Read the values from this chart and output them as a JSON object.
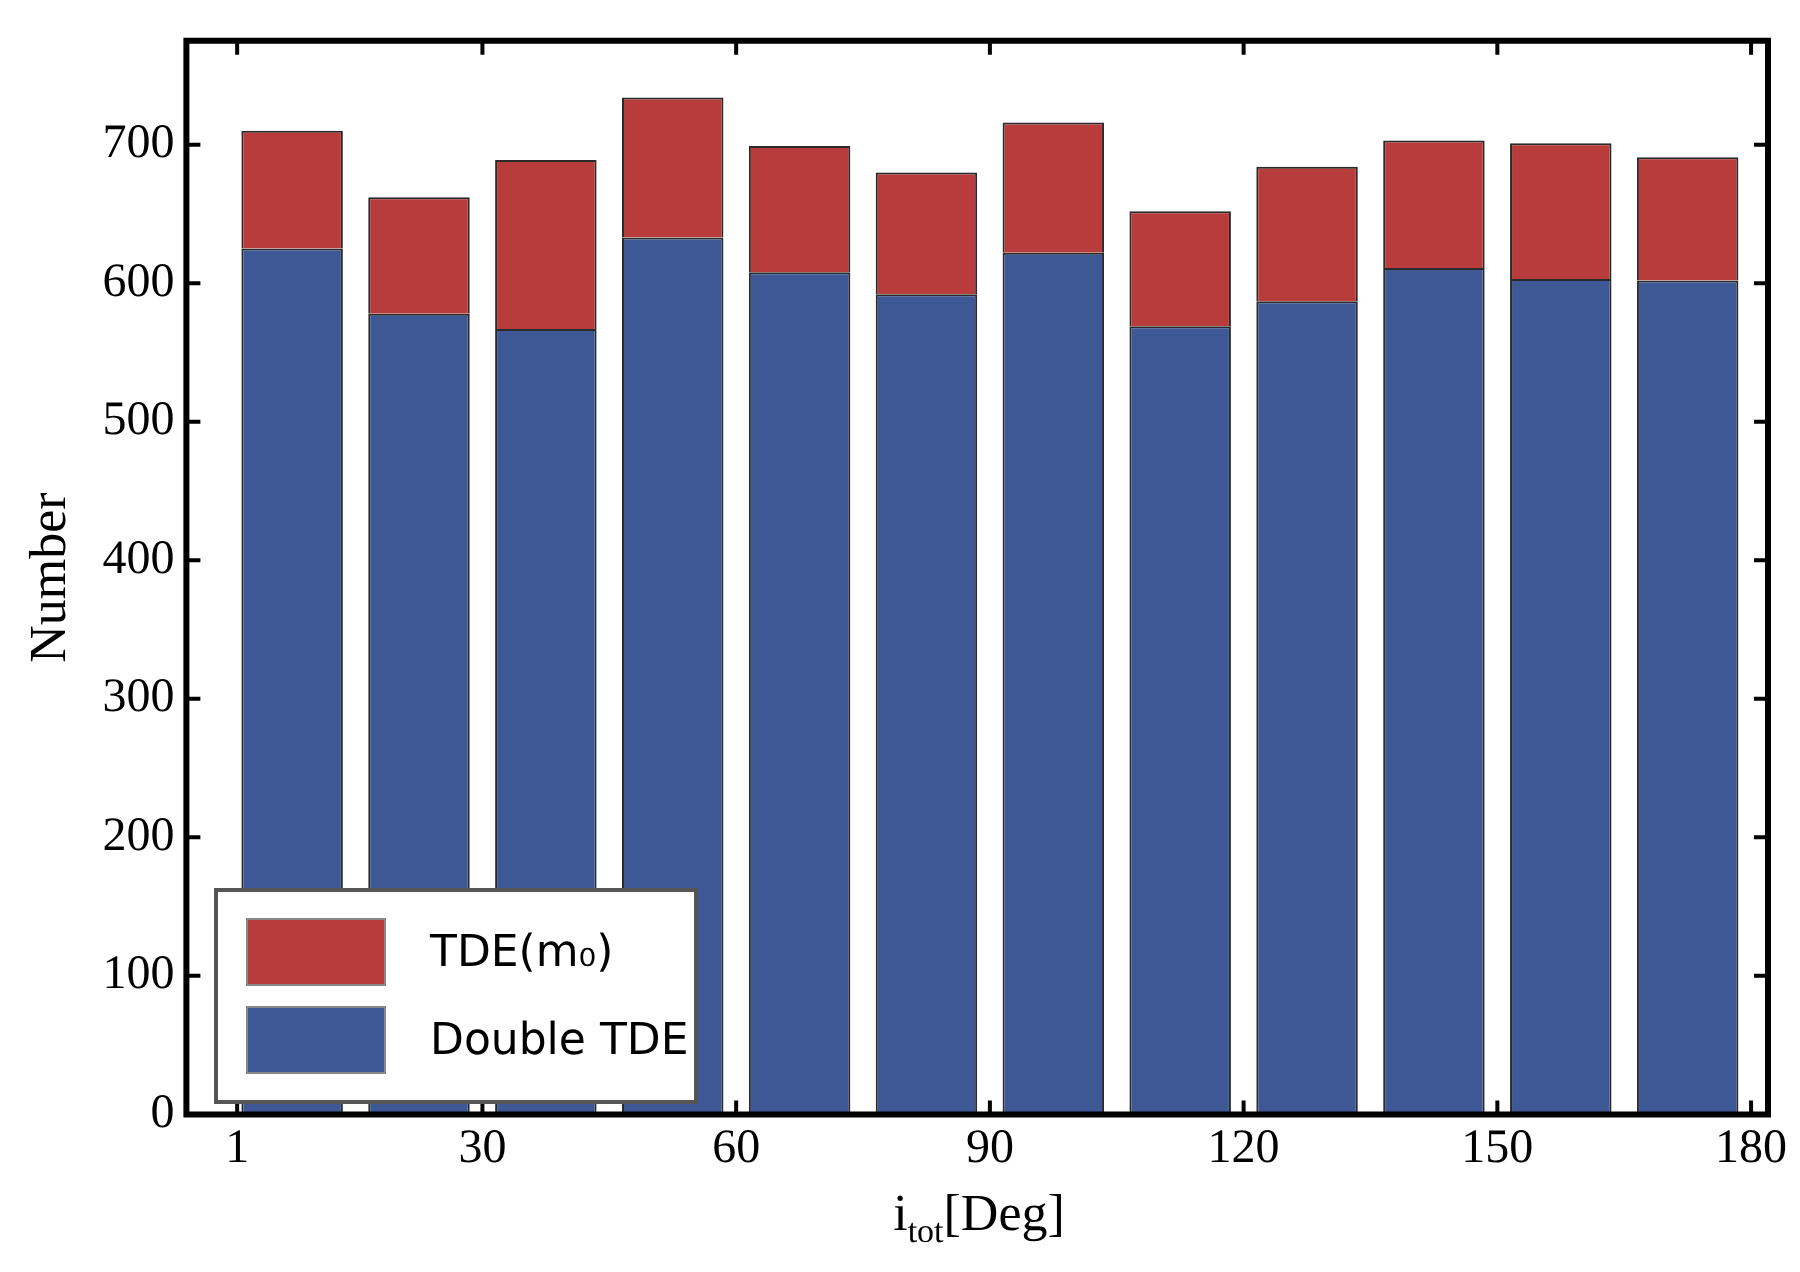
{
  "chart_data": {
    "type": "bar",
    "stacked": true,
    "xlabel": "i$_{tot}$[Deg]",
    "ylabel": "Number",
    "x": [
      7.5,
      22.5,
      37.5,
      52.5,
      67.5,
      82.5,
      97.5,
      112.5,
      127.5,
      142.5,
      157.5,
      172.5
    ],
    "xlim": [
      -5,
      182
    ],
    "xticks": [
      1,
      30,
      60,
      90,
      120,
      150,
      180
    ],
    "ylim": [
      0,
      775
    ],
    "yticks": [
      0,
      100,
      200,
      300,
      400,
      500,
      600,
      700
    ],
    "legend": "bottom left",
    "series": [
      {
        "name": "Double TDE",
        "color": "#3d5894",
        "values": [
          625,
          578,
          567,
          633,
          608,
          592,
          622,
          569,
          587,
          611,
          603,
          602
        ]
      },
      {
        "name": "TDE(m₀)",
        "color": "#b83c3c",
        "values": [
          85,
          84,
          122,
          101,
          91,
          88,
          94,
          83,
          97,
          92,
          98,
          89
        ]
      }
    ]
  }
}
